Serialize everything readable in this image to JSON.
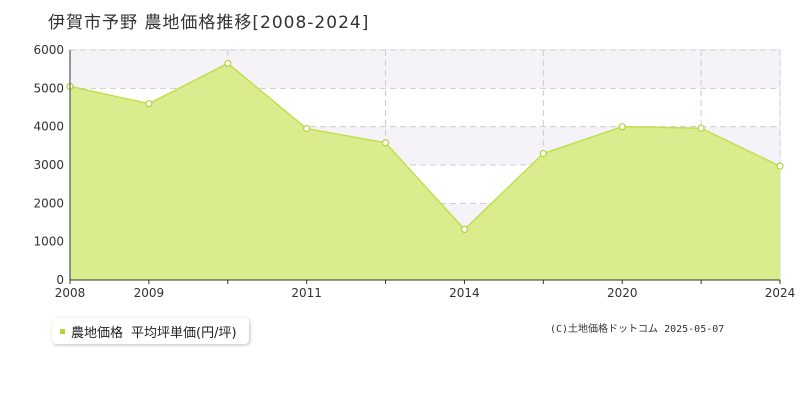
{
  "title": "伊賀市予野 農地価格推移[2008-2024]",
  "legend": {
    "series_label": "農地価格",
    "unit_label": "平均坪単価(円/坪)"
  },
  "copyright": "(C)土地価格ドットコム 2025-05-07",
  "colors": {
    "fill": "#d9ec8e",
    "line": "#c2df50",
    "marker": "#b5d335",
    "band": "#f5f3f7"
  },
  "chart_data": {
    "type": "area",
    "title": "伊賀市予野 農地価格推移[2008-2024]",
    "xlabel": "",
    "ylabel": "",
    "x_tick_labels": [
      "2008",
      "2009",
      "2011",
      "2014",
      "2020",
      "2024"
    ],
    "y_ticks": [
      0,
      1000,
      2000,
      3000,
      4000,
      5000,
      6000
    ],
    "ylim": [
      0,
      6000
    ],
    "grid": true,
    "series": [
      {
        "name": "農地価格",
        "points": [
          5050,
          4600,
          5650,
          3950,
          3580,
          1320,
          3300,
          4000,
          3960,
          2970
        ]
      }
    ]
  }
}
